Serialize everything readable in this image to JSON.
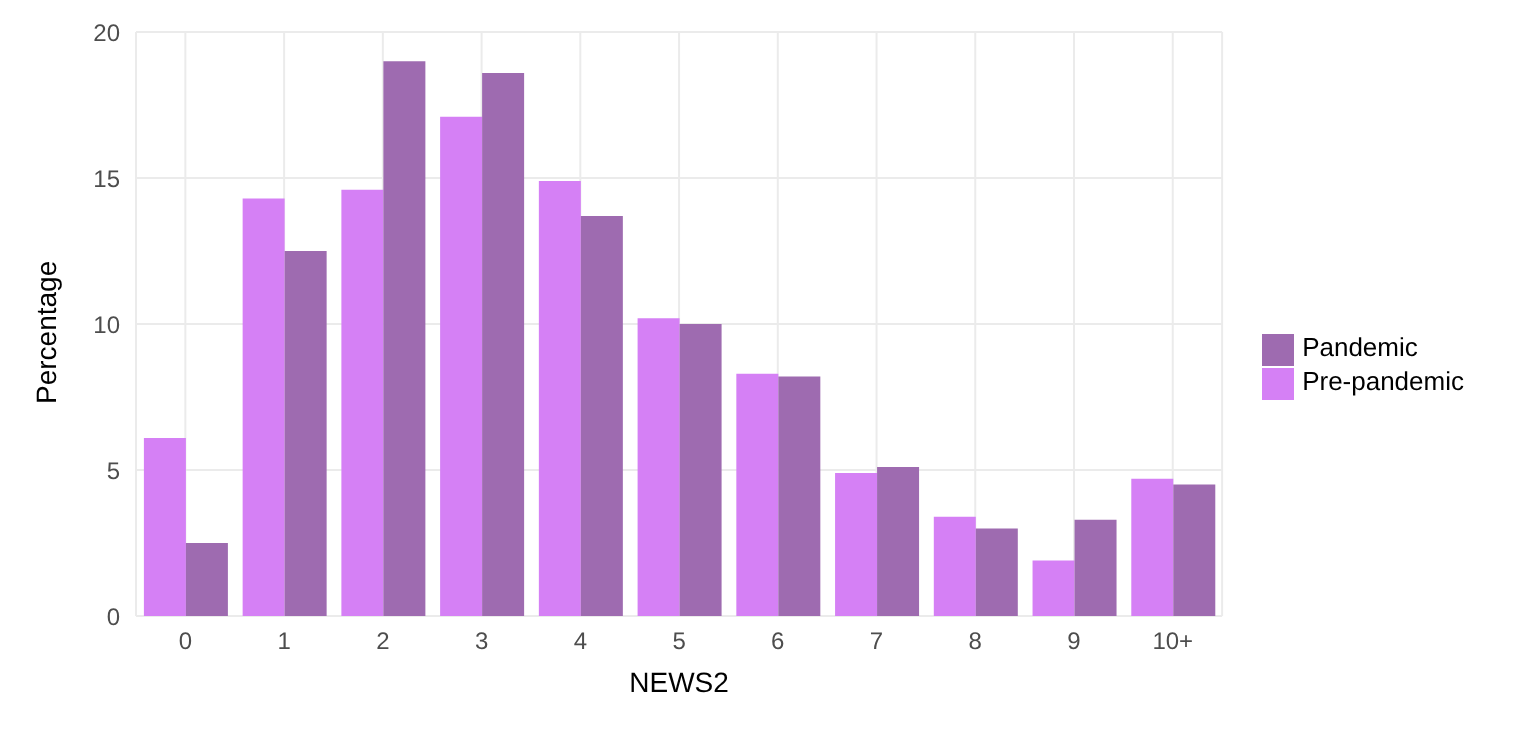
{
  "chart_data": {
    "type": "bar",
    "xlabel": "NEWS2",
    "ylabel": "Percentage",
    "categories": [
      "0",
      "1",
      "2",
      "3",
      "4",
      "5",
      "6",
      "7",
      "8",
      "9",
      "10+"
    ],
    "series": [
      {
        "name": "Pre-pandemic",
        "color": "#d580f5",
        "values": [
          6.1,
          14.3,
          14.6,
          17.1,
          14.9,
          10.2,
          8.3,
          4.9,
          3.4,
          1.9,
          4.7
        ]
      },
      {
        "name": "Pandemic",
        "color": "#9e6bb0",
        "values": [
          2.5,
          12.5,
          19.0,
          18.6,
          13.7,
          10.0,
          8.2,
          5.1,
          3.0,
          3.3,
          4.5
        ]
      }
    ],
    "ylim": [
      0,
      20
    ],
    "yticks": [
      0,
      5,
      10,
      15,
      20
    ],
    "grid": true,
    "legend": "right"
  }
}
